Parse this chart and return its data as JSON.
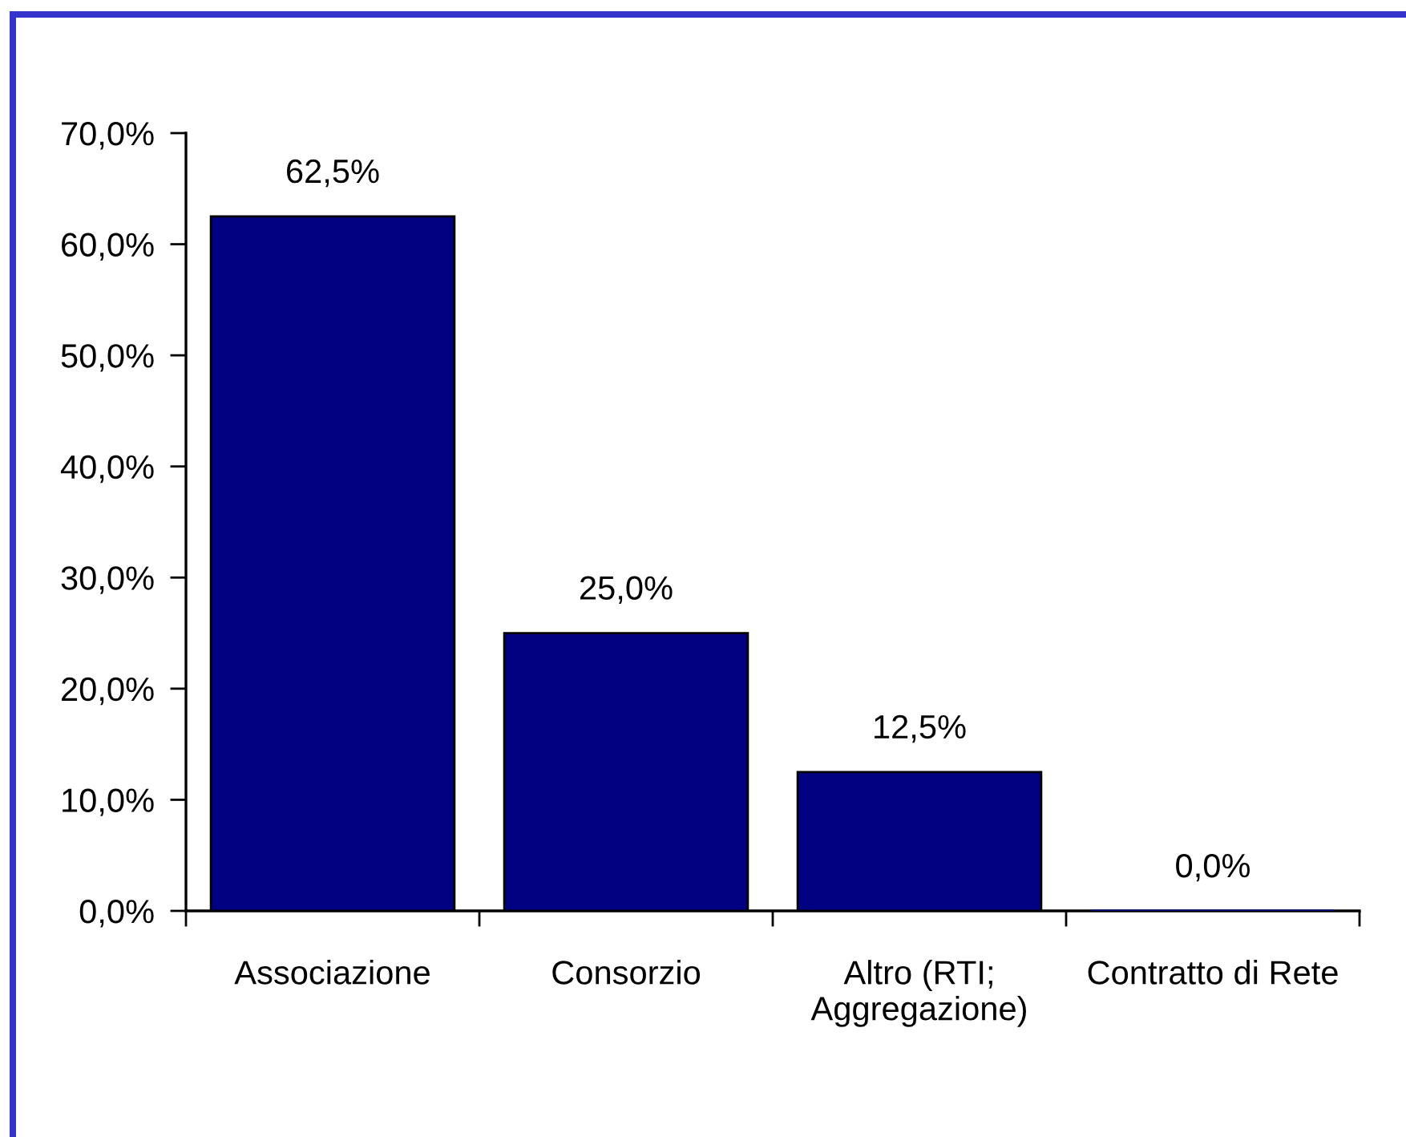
{
  "chart_data": {
    "type": "bar",
    "categories": [
      "Associazione",
      "Consorzio",
      "Altro (RTI; Aggregazione)",
      "Contratto di Rete"
    ],
    "values": [
      62.5,
      25.0,
      12.5,
      0.0
    ],
    "color": "#000080",
    "value_labels": [
      "62,5%",
      "25,0%",
      "12,5%",
      "0,0%"
    ],
    "ylim": [
      0,
      70
    ],
    "yticks": [
      {
        "value": 0,
        "label": "0,0%"
      },
      {
        "value": 10,
        "label": "10,0%"
      },
      {
        "value": 20,
        "label": "20,0%"
      },
      {
        "value": 30,
        "label": "30,0%"
      },
      {
        "value": 40,
        "label": "40,0%"
      },
      {
        "value": 50,
        "label": "50,0%"
      },
      {
        "value": 60,
        "label": "60,0%"
      },
      {
        "value": 70,
        "label": "70,0%"
      }
    ]
  }
}
